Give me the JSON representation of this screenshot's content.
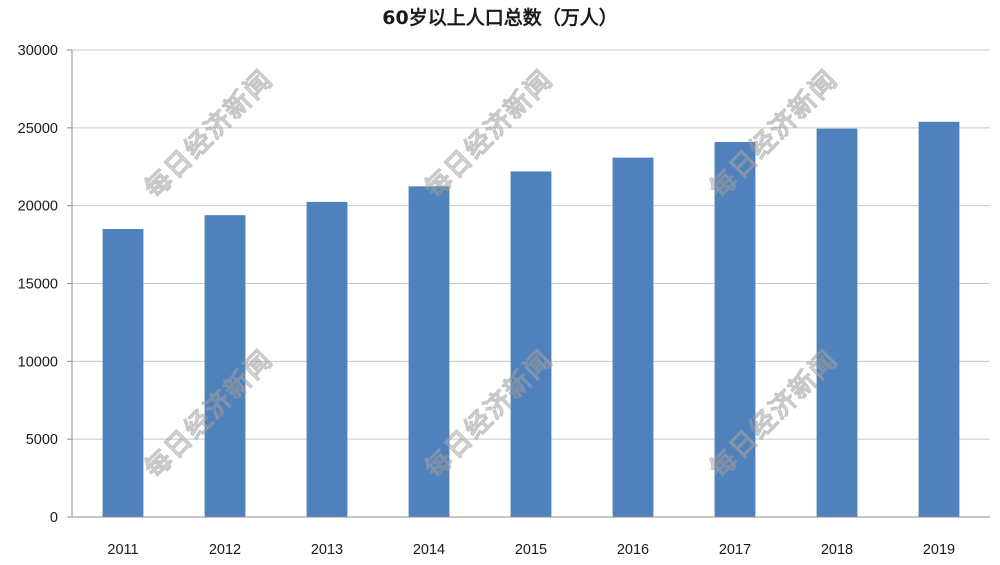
{
  "watermark": "每日经济新闻",
  "colors": {
    "bar": "#4F81BD",
    "grid": "#C8C8C8",
    "axis": "#8C8C8C"
  },
  "chart_data": {
    "type": "bar",
    "title": "60岁以上人口总数（万人）",
    "xlabel": "",
    "ylabel": "",
    "categories": [
      "2011",
      "2012",
      "2013",
      "2014",
      "2015",
      "2016",
      "2017",
      "2018",
      "2019"
    ],
    "values": [
      18499,
      19390,
      20243,
      21242,
      22200,
      23086,
      24090,
      24949,
      25388
    ],
    "ylim": [
      0,
      30000
    ],
    "yticks": [
      0,
      5000,
      10000,
      15000,
      20000,
      25000,
      30000
    ],
    "grid": true,
    "legend": "none"
  }
}
